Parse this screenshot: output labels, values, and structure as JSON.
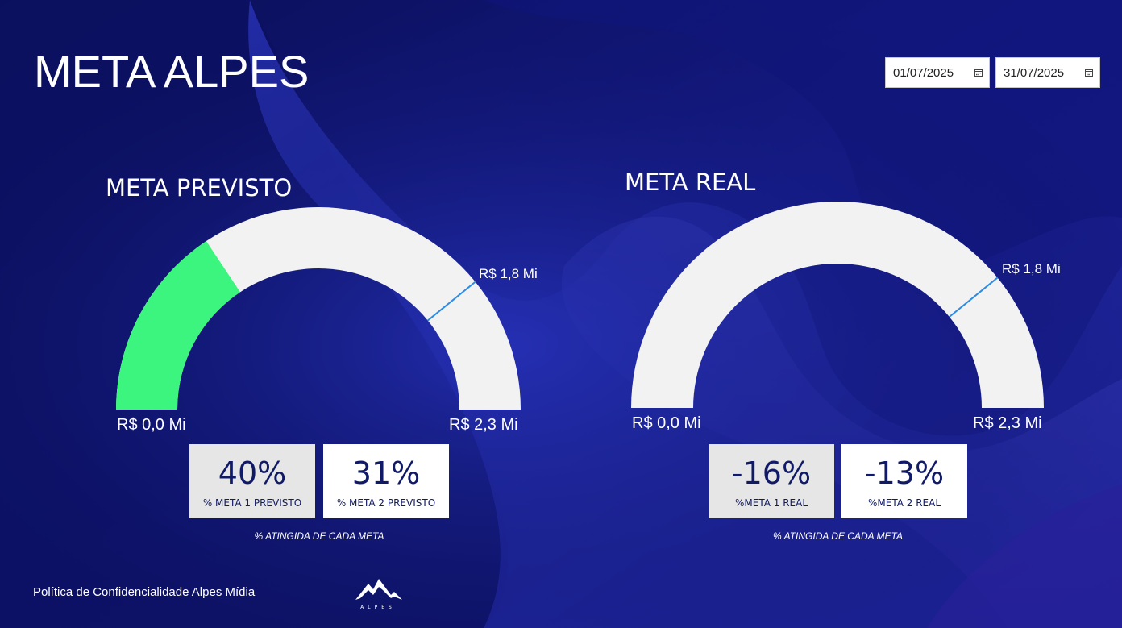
{
  "page": {
    "title": "META ALPES"
  },
  "filters": {
    "start_date": "01/07/2025",
    "end_date": "31/07/2025",
    "calendar_icon": "calendar-icon"
  },
  "gauges": [
    {
      "id": "previsto",
      "title": "META PREVISTO",
      "min_label": "R$ 0,0 Mi",
      "max_label": "R$ 2,3 Mi",
      "target_label": "R$ 1,8 Mi",
      "min": 0,
      "max": 2.3,
      "target": 1.8,
      "value": 0.72,
      "fill_color": "#3cf57f",
      "track_color": "#f3f2f2",
      "target_color": "#2b8be6",
      "cards": [
        {
          "value": "40%",
          "label": "% META 1 PREVISTO",
          "bg": "#e6e6e6"
        },
        {
          "value": "31%",
          "label": "% META 2 PREVISTO",
          "bg": "#ffffff"
        }
      ],
      "caption": "% ATINGIDA DE CADA META"
    },
    {
      "id": "real",
      "title": "META REAL",
      "min_label": "R$ 0,0 Mi",
      "max_label": "R$ 2,3 Mi",
      "target_label": "R$ 1,8 Mi",
      "min": 0,
      "max": 2.3,
      "target": 1.8,
      "value": 0,
      "fill_color": "#3cf57f",
      "track_color": "#f3f2f2",
      "target_color": "#2b8be6",
      "cards": [
        {
          "value": "-16%",
          "label": "%META 1 REAL",
          "bg": "#e6e6e6"
        },
        {
          "value": "-13%",
          "label": "%META 2 REAL",
          "bg": "#ffffff"
        }
      ],
      "caption": "% ATINGIDA DE CADA META"
    }
  ],
  "footer": {
    "text": "Política de Confidencialidade Alpes Mídia",
    "logo_icon": "alpes-mountain-logo",
    "logo_text": "ALPES"
  }
}
